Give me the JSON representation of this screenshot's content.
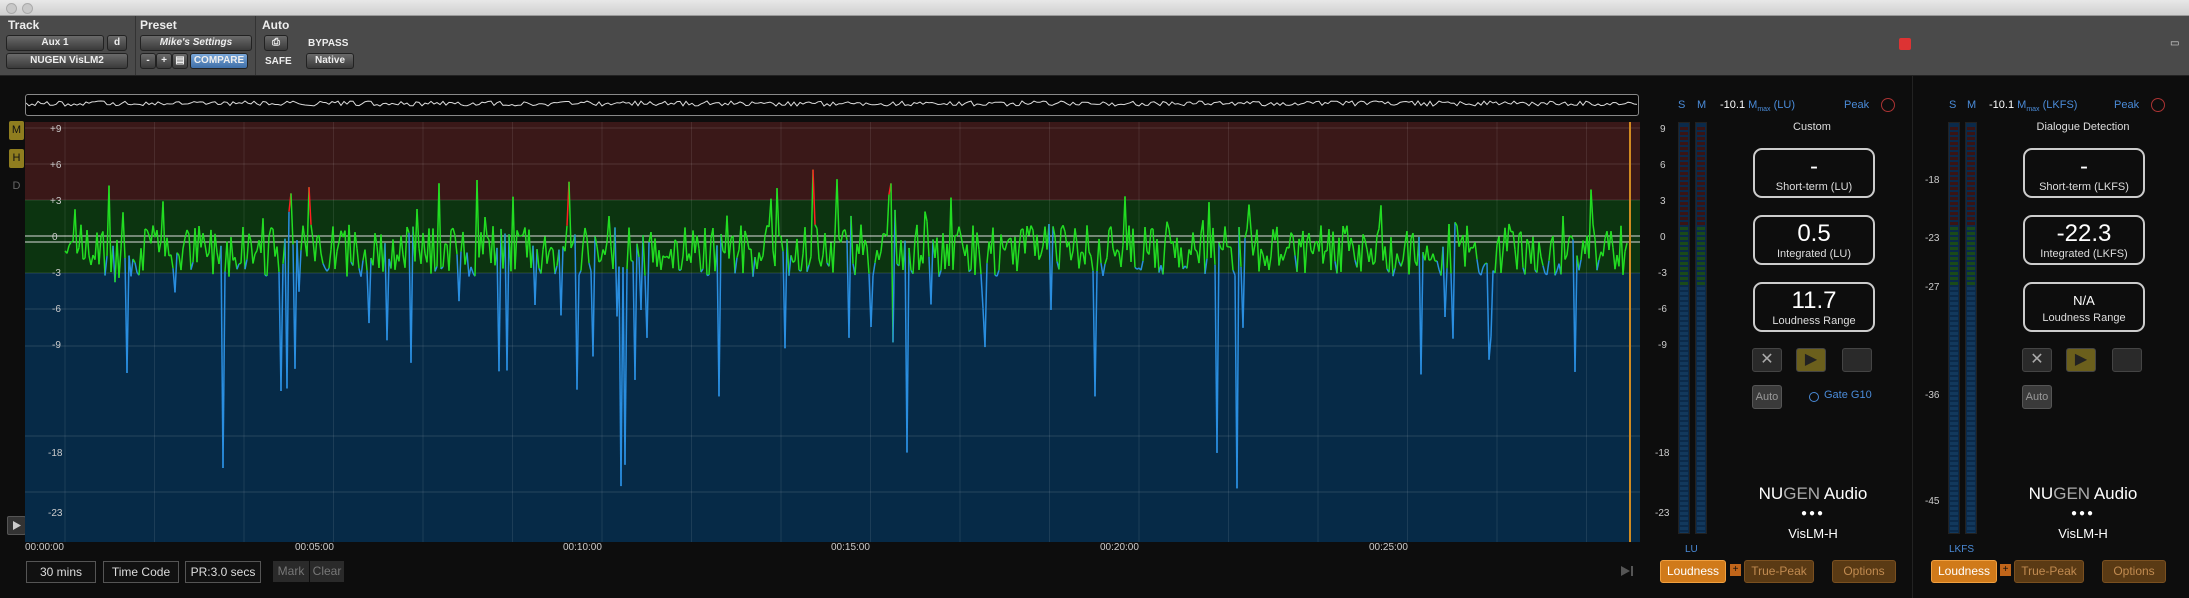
{
  "titlebar": {
    "buttons": [
      "close",
      "minimize"
    ]
  },
  "protools": {
    "track_label": "Track",
    "track_name": "Aux 1",
    "track_suffix": "d",
    "plugin_name": "NUGEN VisLM2",
    "preset_label": "Preset",
    "preset_name": "Mike's Settings",
    "minus": "-",
    "plus": "+",
    "compare": "COMPARE",
    "auto_label": "Auto",
    "bypass": "BYPASS",
    "safe": "SAFE",
    "native": "Native"
  },
  "graph": {
    "side_buttons": [
      "M",
      "H",
      "D"
    ],
    "y_ticks_left": [
      "+9",
      "+6",
      "+3",
      "0",
      "-3",
      "-6",
      "-9",
      "-18",
      "-23"
    ],
    "y_ticks_right": [
      "9",
      "6",
      "3",
      "0",
      "-3",
      "-6",
      "-9",
      "-18",
      "-23"
    ],
    "time_labels": [
      "00:00:00",
      "00:05:00",
      "00:10:00",
      "00:15:00",
      "00:20:00",
      "00:25:00"
    ],
    "colors": {
      "above": "#ff2020",
      "target": "#22dd22",
      "below": "#2a8ee0",
      "band_red": "#3a1818",
      "band_green": "#0c3410",
      "band_blue": "#062a47"
    }
  },
  "bottom": {
    "range": "30 mins",
    "timecode": "Time Code",
    "pr": "PR:3.0 secs",
    "mark": "Mark",
    "clear": "Clear"
  },
  "panel1": {
    "s": "S",
    "m": "M",
    "value": "-10.1",
    "m_unit": "M",
    "m_sub": "max",
    "unit": "(LU)",
    "peak": "Peak",
    "title": "Custom",
    "shortterm_value": "-",
    "shortterm_label": "Short-term (LU)",
    "integrated_value": "0.5",
    "integrated_label": "Integrated (LU)",
    "range_value": "11.7",
    "range_label": "Loudness Range",
    "auto": "Auto",
    "gate": "Gate G10",
    "brand_nu": "NU",
    "brand_gen": "GEN",
    "brand_audio": " Audio",
    "dots": "●●●",
    "product": "VisLM-H",
    "meter_unit": "LU",
    "loudness": "Loudness",
    "plus": "+",
    "truepeak": "True-Peak",
    "options": "Options"
  },
  "panel2": {
    "s": "S",
    "m": "M",
    "value": "-10.1",
    "m_unit": "M",
    "m_sub": "max",
    "unit": "(LKFS)",
    "peak": "Peak",
    "title": "Dialogue Detection",
    "shortterm_value": "-",
    "shortterm_label": "Short-term (LKFS)",
    "integrated_value": "-22.3",
    "integrated_label": "Integrated (LKFS)",
    "range_value": "N/A",
    "range_label": "Loudness Range",
    "auto": "Auto",
    "scale": [
      "-18",
      "-23",
      "-27",
      "-36",
      "-45"
    ],
    "brand_nu": "NU",
    "brand_gen": "GEN",
    "brand_audio": " Audio",
    "dots": "●●●",
    "product": "VisLM-H",
    "meter_unit": "LKFS",
    "loudness": "Loudness",
    "plus": "+",
    "truepeak": "True-Peak",
    "options": "Options"
  }
}
